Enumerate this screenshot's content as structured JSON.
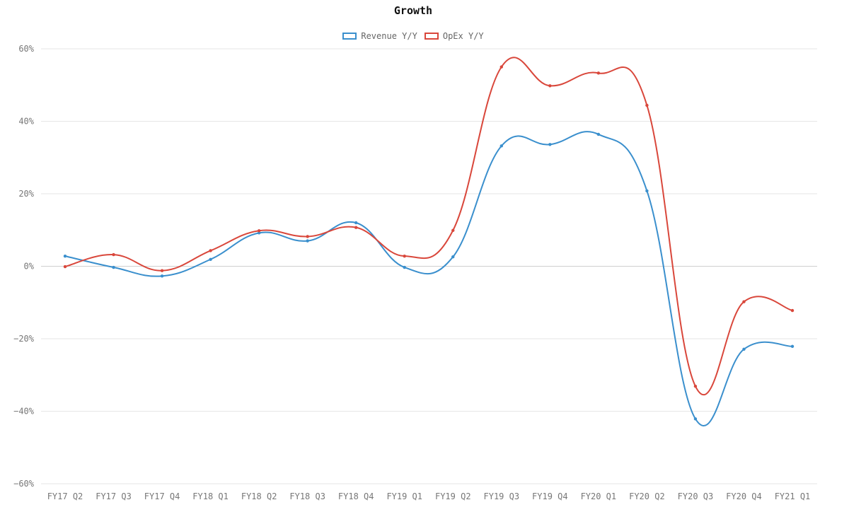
{
  "chart_data": {
    "type": "line",
    "title": "Growth",
    "xlabel": "",
    "ylabel": "",
    "ylim": [
      -60,
      60
    ],
    "yticks": [
      60,
      40,
      20,
      0,
      -20,
      -40,
      -60
    ],
    "ytick_labels": [
      "60%",
      "40%",
      "20%",
      "0%",
      "−20%",
      "−40%",
      "−60%"
    ],
    "grid": true,
    "legend_position": "top-center",
    "categories": [
      "FY17 Q2",
      "FY17 Q3",
      "FY17 Q4",
      "FY18 Q1",
      "FY18 Q2",
      "FY18 Q3",
      "FY18 Q4",
      "FY19 Q1",
      "FY19 Q2",
      "FY19 Q3",
      "FY19 Q4",
      "FY20 Q1",
      "FY20 Q2",
      "FY20 Q3",
      "FY20 Q4",
      "FY21 Q1"
    ],
    "series": [
      {
        "name": "Revenue Y/Y",
        "color": "#3a8fcd",
        "values": [
          2.8,
          -0.3,
          -2.7,
          1.9,
          9.2,
          7.0,
          12.0,
          -0.3,
          2.6,
          33.2,
          33.6,
          36.4,
          20.8,
          -42.1,
          -22.9,
          -22.1
        ]
      },
      {
        "name": "OpEx Y/Y",
        "color": "#d9473b",
        "values": [
          -0.1,
          3.2,
          -1.2,
          4.3,
          9.8,
          8.2,
          10.7,
          2.8,
          9.9,
          55.0,
          49.8,
          53.3,
          44.4,
          -33.1,
          -9.8,
          -12.2
        ]
      }
    ]
  }
}
